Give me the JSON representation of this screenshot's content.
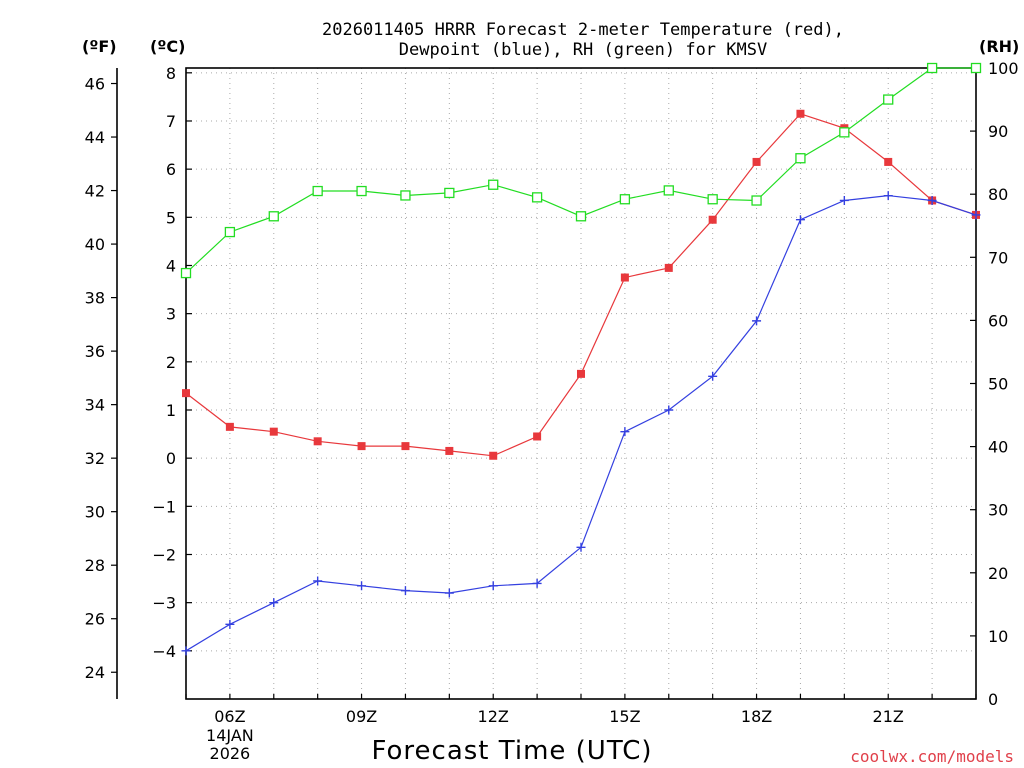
{
  "colors": {
    "temperature": "#e8383c",
    "dewpoint": "#3440e0",
    "rh": "#22dd22",
    "credit": "#e0404a",
    "grid": "#aaaaaa"
  },
  "title_lines": [
    "2026011405 HRRR Forecast 2-meter Temperature (red),",
    "Dewpoint (blue), RH (green) for KMSV"
  ],
  "units": {
    "fahrenheit": "(ºF)",
    "celsius": "(ºC)",
    "rh": "(RH)"
  },
  "credit": "coolwx.com/models",
  "chart_data": {
    "type": "line",
    "title": "2026011405 HRRR Forecast 2-meter Temperature (red), Dewpoint (blue), RH (green) for KMSV",
    "xlabel": "Forecast Time (UTC)",
    "x_hours": [
      5,
      6,
      7,
      8,
      9,
      10,
      11,
      12,
      13,
      14,
      15,
      16,
      17,
      18,
      19,
      20,
      21,
      22,
      23
    ],
    "xlim": [
      5,
      23
    ],
    "x_ticks": [
      {
        "hour": 6,
        "label": "06Z",
        "sub": [
          "14JAN",
          "2026"
        ]
      },
      {
        "hour": 9,
        "label": "09Z",
        "sub": []
      },
      {
        "hour": 12,
        "label": "12Z",
        "sub": []
      },
      {
        "hour": 15,
        "label": "15Z",
        "sub": []
      },
      {
        "hour": 18,
        "label": "18Z",
        "sub": []
      },
      {
        "hour": 21,
        "label": "21Z",
        "sub": []
      }
    ],
    "y_celsius": {
      "range": [
        -5,
        8.1
      ],
      "ticks": [
        -4,
        -3,
        -2,
        -1,
        0,
        1,
        2,
        3,
        4,
        5,
        6,
        7,
        8
      ],
      "tick_labels": [
        "−4",
        "−3",
        "−2",
        "−1",
        "0",
        "1",
        "2",
        "3",
        "4",
        "5",
        "6",
        "7",
        "8"
      ]
    },
    "y_fahrenheit": {
      "ticks": [
        24,
        26,
        28,
        30,
        32,
        34,
        36,
        38,
        40,
        42,
        44,
        46
      ]
    },
    "y_rh": {
      "range": [
        0,
        100
      ],
      "ticks": [
        0,
        10,
        20,
        30,
        40,
        50,
        60,
        70,
        80,
        90,
        100
      ]
    },
    "series": [
      {
        "name": "Temperature",
        "unit": "C",
        "axis": "celsius",
        "color": "#e8383c",
        "marker": "filled-square",
        "values": [
          1.35,
          0.65,
          0.55,
          0.35,
          0.25,
          0.25,
          0.15,
          0.05,
          0.45,
          1.75,
          3.75,
          3.95,
          4.95,
          6.15,
          7.15,
          6.85,
          6.15,
          5.35,
          5.05
        ]
      },
      {
        "name": "Dewpoint",
        "unit": "C",
        "axis": "celsius",
        "color": "#3440e0",
        "marker": "plus",
        "values": [
          -4.0,
          -3.45,
          -3.0,
          -2.55,
          -2.65,
          -2.75,
          -2.8,
          -2.65,
          -2.6,
          -1.85,
          0.55,
          1.0,
          1.7,
          2.85,
          4.95,
          5.35,
          5.45,
          5.35,
          5.05
        ]
      },
      {
        "name": "RH",
        "unit": "%",
        "axis": "rh",
        "color": "#22dd22",
        "marker": "open-square",
        "values": [
          67.5,
          74,
          76.5,
          80.5,
          80.5,
          79.8,
          80.2,
          81.5,
          79.5,
          76.5,
          79.2,
          80.6,
          79.2,
          79,
          85.7,
          89.8,
          95,
          100,
          100
        ]
      }
    ]
  }
}
